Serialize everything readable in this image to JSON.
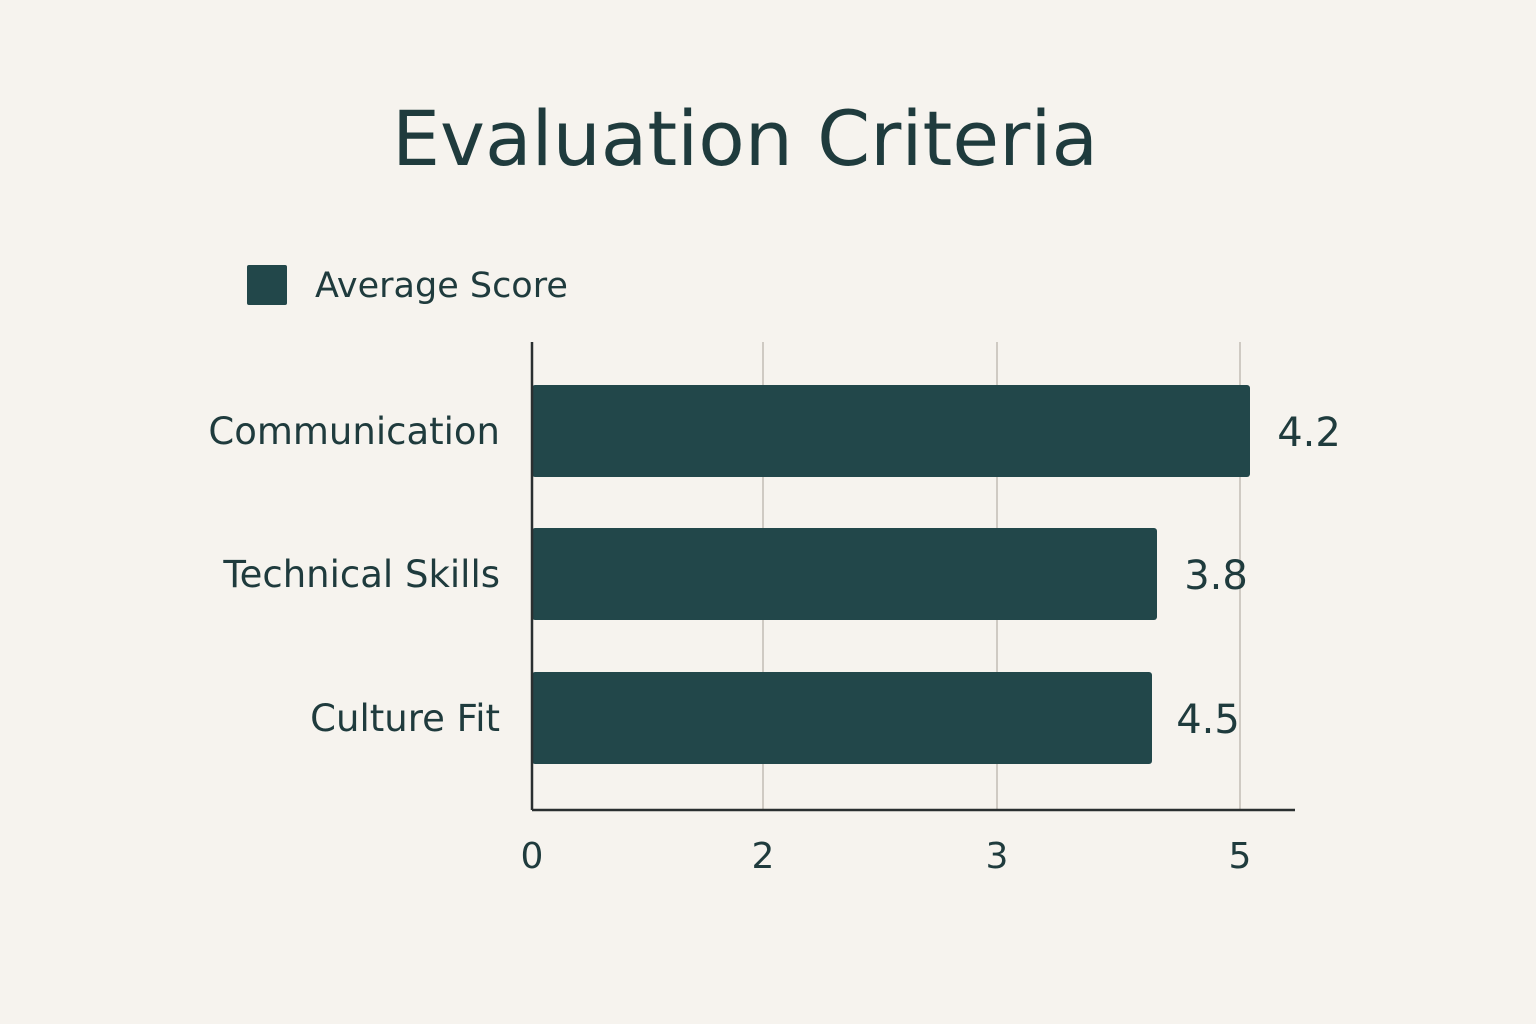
{
  "chart_data": {
    "type": "bar",
    "orientation": "horizontal",
    "title": "Evaluation Criteria",
    "xlabel": "",
    "ylabel": "",
    "categories": [
      "Communication",
      "Technical Skills",
      "Culture Fit"
    ],
    "series": [
      {
        "name": "Average Score",
        "values": [
          4.2,
          3.8,
          4.5
        ]
      }
    ],
    "value_labels": [
      "4.2",
      "3.8",
      "4.5"
    ],
    "x_ticks": [
      0,
      2,
      3,
      5
    ],
    "x_tick_labels": [
      "0",
      "2",
      "3",
      "5"
    ],
    "xlim": [
      0,
      5
    ],
    "grid": "vertical",
    "legend_position": "top-left"
  },
  "colors": {
    "bar": "#22474a",
    "text": "#1f3b3d",
    "axis": "#2a2f30",
    "grid": "#cfcac3",
    "background": "#f6f3ee"
  }
}
